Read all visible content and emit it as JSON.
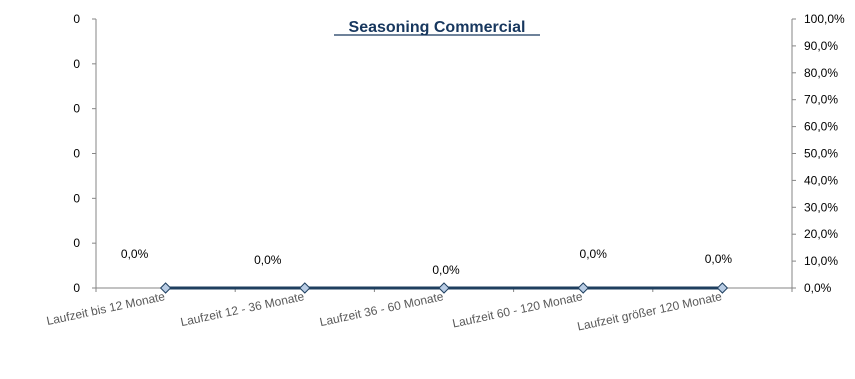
{
  "chart_data": {
    "type": "line",
    "title": "Seasoning Commercial",
    "categories": [
      "Laufzeit bis 12 Monate",
      "Laufzeit 12 - 36 Monate",
      "Laufzeit 36 - 60 Monate",
      "Laufzeit 60 - 120 Monate",
      "Laufzeit größer 120 Monate"
    ],
    "series": [
      {
        "values": [
          0,
          0,
          0,
          0,
          0
        ],
        "axis": "right"
      }
    ],
    "data_labels": [
      "0,0%",
      "0,0%",
      "0,0%",
      "0,0%",
      "0,0%"
    ],
    "y_left_ticks": [
      "0",
      "0",
      "0",
      "0",
      "0",
      "0",
      "0"
    ],
    "y_right_ticks": [
      "0,0%",
      "10,0%",
      "20,0%",
      "30,0%",
      "40,0%",
      "50,0%",
      "60,0%",
      "70,0%",
      "80,0%",
      "90,0%",
      "100,0%"
    ],
    "y_right_range": [
      0,
      100
    ],
    "grid": false,
    "legend": "none",
    "colors": {
      "line": "#1f3f5f",
      "marker_fill": "#b8cce4",
      "marker_stroke": "#1f3f5f",
      "axis": "#868686",
      "title": "#17375e"
    }
  }
}
